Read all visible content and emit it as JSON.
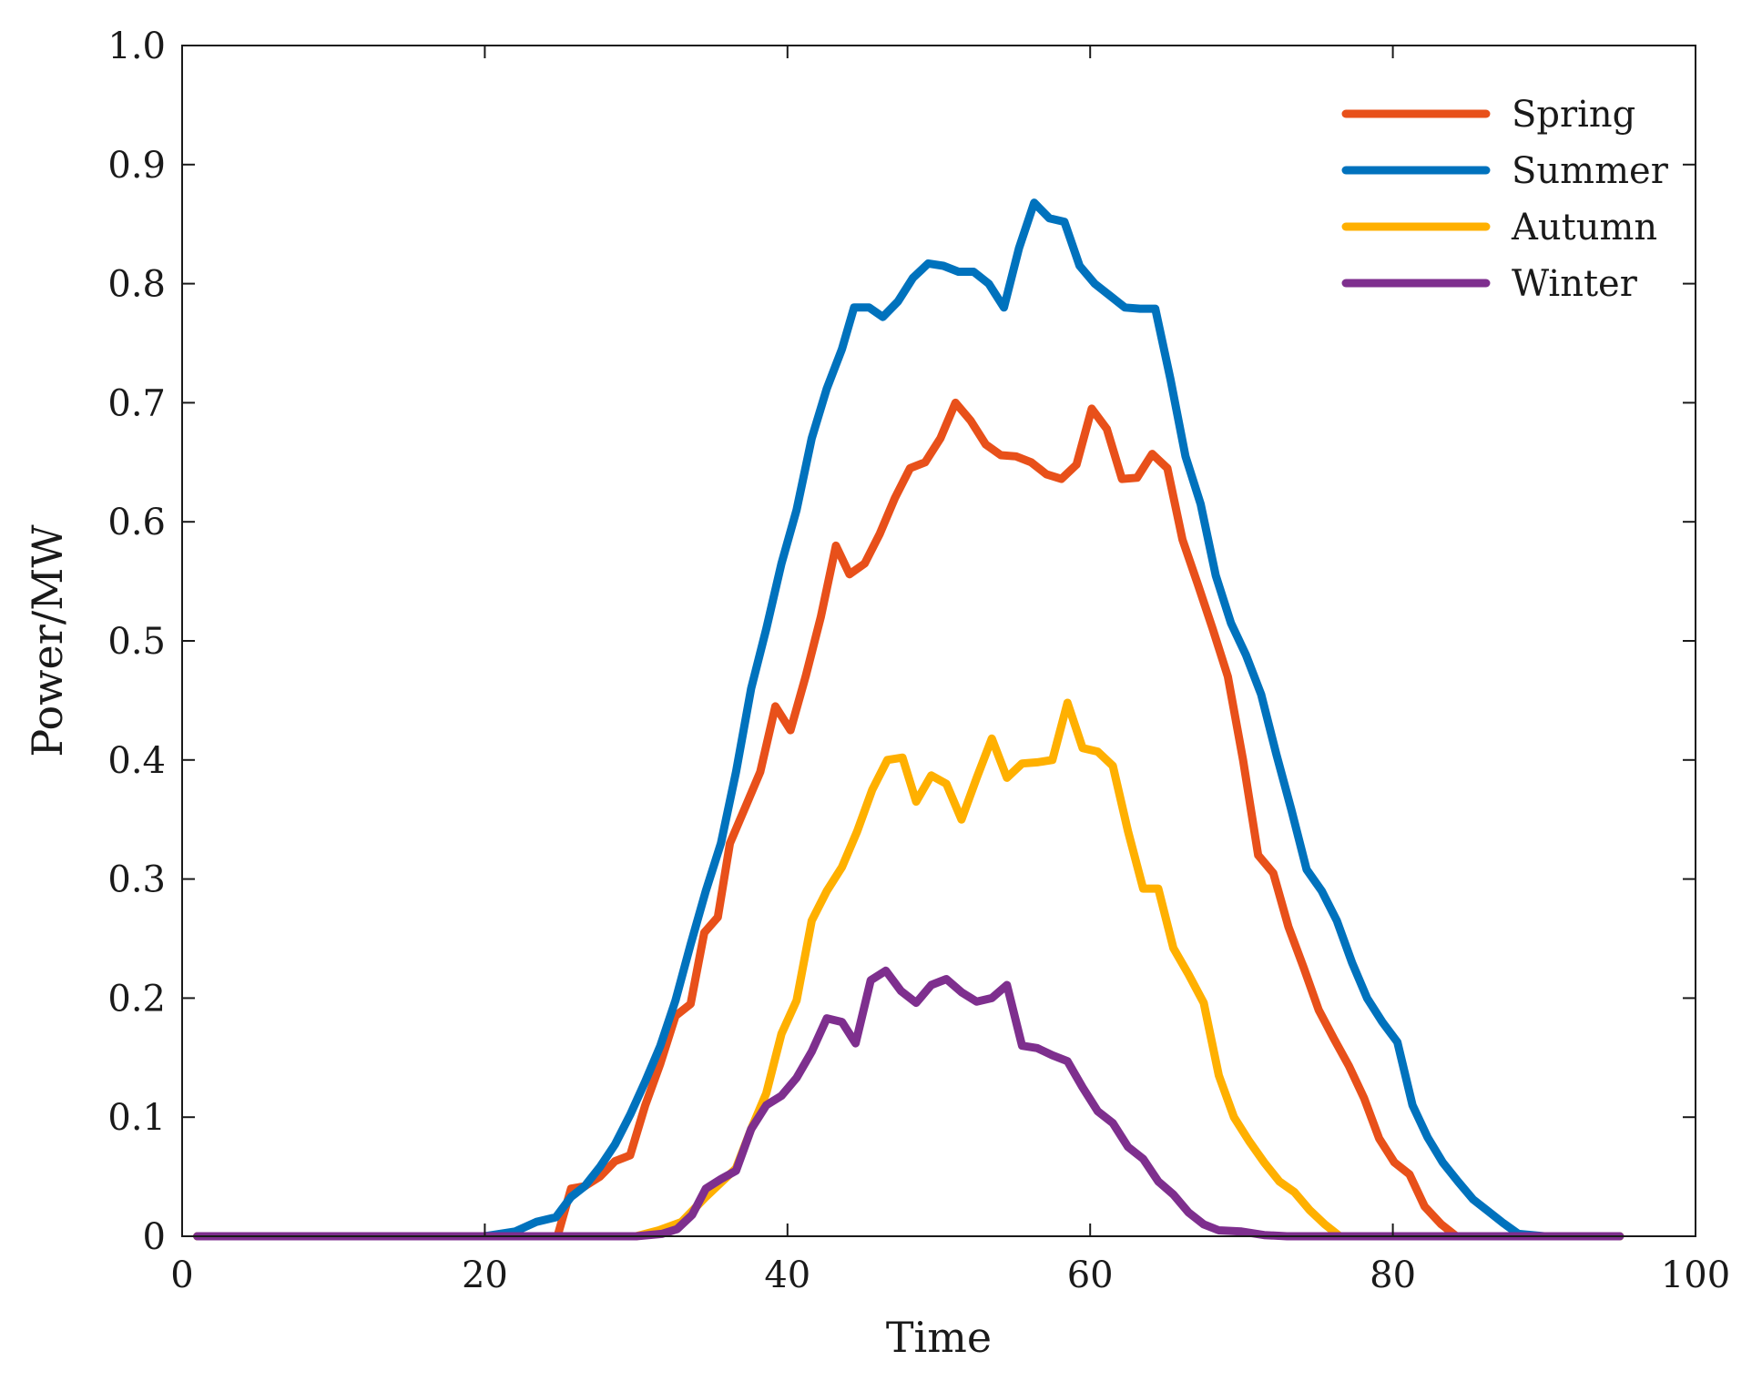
{
  "chart_data": {
    "type": "line",
    "title": "",
    "xlabel": "Time",
    "ylabel": "Power/MW",
    "xlim": [
      0,
      100
    ],
    "ylim": [
      0,
      1.0
    ],
    "xticks": [
      0,
      20,
      40,
      60,
      80,
      100
    ],
    "xtick_labels": [
      "0",
      "20",
      "40",
      "60",
      "80",
      "100"
    ],
    "yticks": [
      0,
      0.1,
      0.2,
      0.3,
      0.4,
      0.5,
      0.6,
      0.7,
      0.8,
      0.9,
      1.0
    ],
    "ytick_labels": [
      "0",
      "0.1",
      "0.2",
      "0.3",
      "0.4",
      "0.5",
      "0.6",
      "0.7",
      "0.8",
      "0.9",
      "1.0"
    ],
    "grid": false,
    "legend_position": "top-right",
    "series": [
      {
        "name": "Spring",
        "color": "#e8501a",
        "points": [
          [
            1,
            0
          ],
          [
            10,
            0
          ],
          [
            20,
            0
          ],
          [
            24.8,
            0
          ],
          [
            25.7,
            0.04
          ],
          [
            26.6,
            0.042
          ],
          [
            27.6,
            0.05
          ],
          [
            28.6,
            0.063
          ],
          [
            29.6,
            0.068
          ],
          [
            30.6,
            0.11
          ],
          [
            31.6,
            0.145
          ],
          [
            32.6,
            0.185
          ],
          [
            33.6,
            0.195
          ],
          [
            34.5,
            0.255
          ],
          [
            35.4,
            0.268
          ],
          [
            36.2,
            0.33
          ],
          [
            37.2,
            0.36
          ],
          [
            38.2,
            0.39
          ],
          [
            39.2,
            0.445
          ],
          [
            40.2,
            0.425
          ],
          [
            41.2,
            0.47
          ],
          [
            42.2,
            0.52
          ],
          [
            43.2,
            0.58
          ],
          [
            44.1,
            0.556
          ],
          [
            45.1,
            0.565
          ],
          [
            46.1,
            0.59
          ],
          [
            47.1,
            0.62
          ],
          [
            48.1,
            0.645
          ],
          [
            49.1,
            0.65
          ],
          [
            50.1,
            0.67
          ],
          [
            51.1,
            0.7
          ],
          [
            52.1,
            0.685
          ],
          [
            53.1,
            0.665
          ],
          [
            54.1,
            0.656
          ],
          [
            55.1,
            0.655
          ],
          [
            56.1,
            0.65
          ],
          [
            57.1,
            0.64
          ],
          [
            58.1,
            0.636
          ],
          [
            59.1,
            0.648
          ],
          [
            60.1,
            0.695
          ],
          [
            61.1,
            0.678
          ],
          [
            62.1,
            0.636
          ],
          [
            63.1,
            0.637
          ],
          [
            64.1,
            0.657
          ],
          [
            65.1,
            0.645
          ],
          [
            66.1,
            0.585
          ],
          [
            67.1,
            0.548
          ],
          [
            68.1,
            0.51
          ],
          [
            69.1,
            0.47
          ],
          [
            70.1,
            0.4
          ],
          [
            71.1,
            0.32
          ],
          [
            72.1,
            0.305
          ],
          [
            73.1,
            0.26
          ],
          [
            74.1,
            0.226
          ],
          [
            75.1,
            0.19
          ],
          [
            76.1,
            0.166
          ],
          [
            77.1,
            0.143
          ],
          [
            78.1,
            0.116
          ],
          [
            79.1,
            0.082
          ],
          [
            80.1,
            0.062
          ],
          [
            81.1,
            0.052
          ],
          [
            82.1,
            0.025
          ],
          [
            83.2,
            0.01
          ],
          [
            84.2,
            0
          ],
          [
            90,
            0
          ],
          [
            95,
            0
          ]
        ]
      },
      {
        "name": "Summer",
        "color": "#0072bd",
        "points": [
          [
            1,
            0
          ],
          [
            10,
            0
          ],
          [
            20,
            0
          ],
          [
            22,
            0.004
          ],
          [
            23.4,
            0.012
          ],
          [
            24.7,
            0.016
          ],
          [
            25.7,
            0.033
          ],
          [
            26.6,
            0.042
          ],
          [
            27.6,
            0.058
          ],
          [
            28.6,
            0.077
          ],
          [
            29.6,
            0.102
          ],
          [
            30.6,
            0.13
          ],
          [
            31.6,
            0.16
          ],
          [
            32.6,
            0.198
          ],
          [
            33.6,
            0.245
          ],
          [
            34.6,
            0.29
          ],
          [
            35.6,
            0.33
          ],
          [
            36.6,
            0.39
          ],
          [
            37.6,
            0.46
          ],
          [
            38.6,
            0.51
          ],
          [
            39.6,
            0.565
          ],
          [
            40.6,
            0.61
          ],
          [
            41.6,
            0.67
          ],
          [
            42.6,
            0.712
          ],
          [
            43.6,
            0.745
          ],
          [
            44.4,
            0.78
          ],
          [
            45.4,
            0.78
          ],
          [
            46.3,
            0.772
          ],
          [
            47.3,
            0.785
          ],
          [
            48.3,
            0.805
          ],
          [
            49.3,
            0.817
          ],
          [
            50.3,
            0.815
          ],
          [
            51.3,
            0.81
          ],
          [
            52.3,
            0.81
          ],
          [
            53.3,
            0.8
          ],
          [
            54.3,
            0.78
          ],
          [
            55.3,
            0.83
          ],
          [
            56.3,
            0.868
          ],
          [
            57.3,
            0.855
          ],
          [
            58.3,
            0.852
          ],
          [
            59.3,
            0.815
          ],
          [
            60.3,
            0.8
          ],
          [
            61.3,
            0.79
          ],
          [
            62.3,
            0.78
          ],
          [
            63.3,
            0.779
          ],
          [
            64.3,
            0.779
          ],
          [
            65.3,
            0.72
          ],
          [
            66.3,
            0.655
          ],
          [
            67.3,
            0.615
          ],
          [
            68.3,
            0.555
          ],
          [
            69.3,
            0.515
          ],
          [
            70.3,
            0.488
          ],
          [
            71.3,
            0.455
          ],
          [
            72.3,
            0.405
          ],
          [
            73.3,
            0.358
          ],
          [
            74.3,
            0.308
          ],
          [
            75.3,
            0.29
          ],
          [
            76.3,
            0.265
          ],
          [
            77.3,
            0.23
          ],
          [
            78.3,
            0.2
          ],
          [
            79.3,
            0.18
          ],
          [
            80.3,
            0.163
          ],
          [
            81.3,
            0.11
          ],
          [
            82.3,
            0.083
          ],
          [
            83.3,
            0.062
          ],
          [
            84.3,
            0.046
          ],
          [
            85.3,
            0.031
          ],
          [
            86.3,
            0.021
          ],
          [
            87.3,
            0.011
          ],
          [
            88.3,
            0.002
          ],
          [
            90,
            0
          ],
          [
            95,
            0
          ]
        ]
      },
      {
        "name": "Autumn",
        "color": "#ffb000",
        "points": [
          [
            1,
            0
          ],
          [
            10,
            0
          ],
          [
            20,
            0
          ],
          [
            30,
            0
          ],
          [
            31.5,
            0.005
          ],
          [
            33,
            0.012
          ],
          [
            34.6,
            0.033
          ],
          [
            35.6,
            0.045
          ],
          [
            36.6,
            0.057
          ],
          [
            37.6,
            0.09
          ],
          [
            38.6,
            0.12
          ],
          [
            39.6,
            0.17
          ],
          [
            40.6,
            0.198
          ],
          [
            41.6,
            0.265
          ],
          [
            42.6,
            0.29
          ],
          [
            43.6,
            0.31
          ],
          [
            44.6,
            0.34
          ],
          [
            45.6,
            0.375
          ],
          [
            46.6,
            0.4
          ],
          [
            47.6,
            0.402
          ],
          [
            48.5,
            0.365
          ],
          [
            49.5,
            0.387
          ],
          [
            50.5,
            0.38
          ],
          [
            51.5,
            0.35
          ],
          [
            52.5,
            0.385
          ],
          [
            53.5,
            0.418
          ],
          [
            54.5,
            0.385
          ],
          [
            55.5,
            0.397
          ],
          [
            56.5,
            0.398
          ],
          [
            57.5,
            0.4
          ],
          [
            58.5,
            0.448
          ],
          [
            59.5,
            0.41
          ],
          [
            60.5,
            0.407
          ],
          [
            61.5,
            0.395
          ],
          [
            62.5,
            0.34
          ],
          [
            63.5,
            0.292
          ],
          [
            64.5,
            0.292
          ],
          [
            65.5,
            0.242
          ],
          [
            66.5,
            0.22
          ],
          [
            67.5,
            0.196
          ],
          [
            68.5,
            0.135
          ],
          [
            69.5,
            0.1
          ],
          [
            70.5,
            0.08
          ],
          [
            71.5,
            0.062
          ],
          [
            72.5,
            0.046
          ],
          [
            73.5,
            0.037
          ],
          [
            74.5,
            0.022
          ],
          [
            75.5,
            0.01
          ],
          [
            76.5,
            0
          ],
          [
            80,
            0
          ],
          [
            90,
            0
          ],
          [
            95,
            0
          ]
        ]
      },
      {
        "name": "Winter",
        "color": "#7e2f8e",
        "points": [
          [
            1,
            0
          ],
          [
            10,
            0
          ],
          [
            20,
            0
          ],
          [
            30,
            0
          ],
          [
            31.7,
            0.002
          ],
          [
            32.7,
            0.006
          ],
          [
            33.7,
            0.018
          ],
          [
            34.6,
            0.04
          ],
          [
            35.6,
            0.048
          ],
          [
            36.6,
            0.055
          ],
          [
            37.6,
            0.09
          ],
          [
            38.6,
            0.11
          ],
          [
            39.6,
            0.118
          ],
          [
            40.6,
            0.133
          ],
          [
            41.6,
            0.155
          ],
          [
            42.6,
            0.183
          ],
          [
            43.6,
            0.18
          ],
          [
            44.5,
            0.162
          ],
          [
            45.5,
            0.215
          ],
          [
            46.5,
            0.223
          ],
          [
            47.5,
            0.206
          ],
          [
            48.5,
            0.196
          ],
          [
            49.5,
            0.211
          ],
          [
            50.5,
            0.216
          ],
          [
            51.5,
            0.205
          ],
          [
            52.5,
            0.197
          ],
          [
            53.5,
            0.2
          ],
          [
            54.5,
            0.211
          ],
          [
            55.5,
            0.16
          ],
          [
            56.5,
            0.158
          ],
          [
            57.5,
            0.152
          ],
          [
            58.5,
            0.147
          ],
          [
            59.5,
            0.125
          ],
          [
            60.5,
            0.105
          ],
          [
            61.5,
            0.095
          ],
          [
            62.5,
            0.075
          ],
          [
            63.5,
            0.065
          ],
          [
            64.5,
            0.046
          ],
          [
            65.5,
            0.035
          ],
          [
            66.5,
            0.02
          ],
          [
            67.5,
            0.01
          ],
          [
            68.5,
            0.005
          ],
          [
            70,
            0.004
          ],
          [
            71.5,
            0.001
          ],
          [
            73,
            0
          ],
          [
            80,
            0
          ],
          [
            90,
            0
          ],
          [
            95,
            0
          ]
        ]
      }
    ]
  }
}
